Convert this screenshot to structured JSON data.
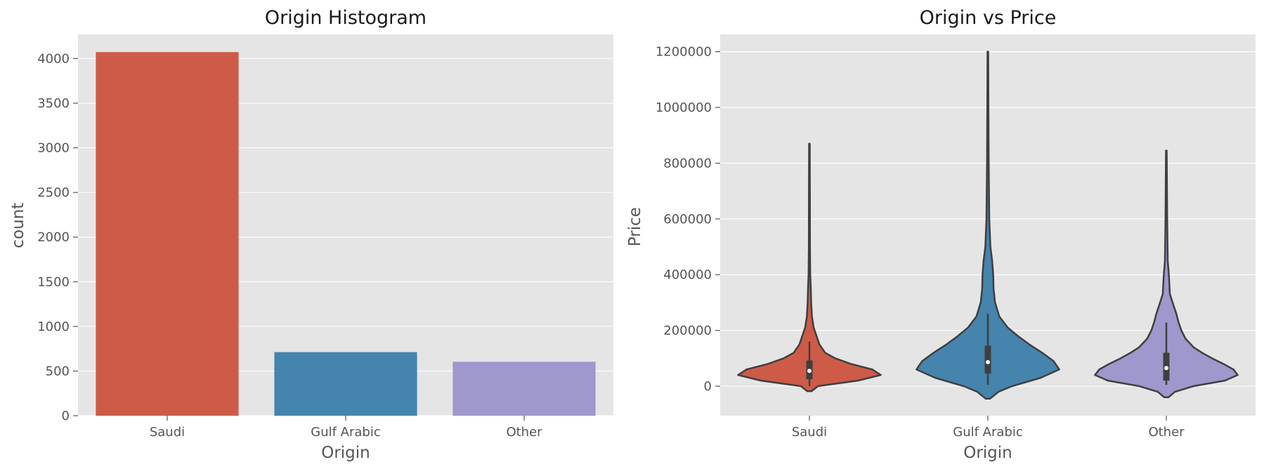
{
  "chart_data": [
    {
      "type": "bar",
      "title": "Origin Histogram",
      "xlabel": "Origin",
      "ylabel": "count",
      "categories": [
        "Saudi",
        "Gulf Arabic",
        "Other"
      ],
      "values": [
        4072,
        712,
        604
      ],
      "colors": [
        "#cd5b48",
        "#4584ad",
        "#9e98cd"
      ],
      "ylim": [
        0,
        4270
      ],
      "yticks": [
        0,
        500,
        1000,
        1500,
        2000,
        2500,
        3000,
        3500,
        4000
      ],
      "grid": true
    },
    {
      "type": "violin",
      "title": "Origin vs Price",
      "xlabel": "Origin",
      "ylabel": "Price",
      "categories": [
        "Saudi",
        "Gulf Arabic",
        "Other"
      ],
      "colors": [
        "#cd5b48",
        "#4584ad",
        "#9e98cd"
      ],
      "ylim": [
        -106000,
        1262000
      ],
      "yticks": [
        0,
        200000,
        400000,
        600000,
        800000,
        1000000,
        1200000
      ],
      "grid": true,
      "series": [
        {
          "name": "Saudi",
          "min": -18000,
          "max": 870000,
          "box": {
            "whisker_low": 0,
            "q1": 25000,
            "median": 55000,
            "q3": 92000,
            "whisker_high": 160000
          },
          "profile": [
            [
              -18000,
              0.03
            ],
            [
              0,
              0.12
            ],
            [
              20000,
              0.68
            ],
            [
              40000,
              1.0
            ],
            [
              60000,
              0.88
            ],
            [
              80000,
              0.58
            ],
            [
              100000,
              0.36
            ],
            [
              120000,
              0.22
            ],
            [
              150000,
              0.14
            ],
            [
              180000,
              0.1
            ],
            [
              210000,
              0.06
            ],
            [
              250000,
              0.035
            ],
            [
              300000,
              0.025
            ],
            [
              350000,
              0.02
            ],
            [
              400000,
              0.012
            ],
            [
              500000,
              0.008
            ],
            [
              650000,
              0.007
            ],
            [
              870000,
              0.005
            ]
          ]
        },
        {
          "name": "Gulf Arabic",
          "min": -45000,
          "max": 1200000,
          "box": {
            "whisker_low": 5000,
            "q1": 45000,
            "median": 86000,
            "q3": 145000,
            "whisker_high": 260000
          },
          "profile": [
            [
              -45000,
              0.03
            ],
            [
              -20000,
              0.15
            ],
            [
              0,
              0.34
            ],
            [
              30000,
              0.74
            ],
            [
              60000,
              1.0
            ],
            [
              90000,
              0.92
            ],
            [
              120000,
              0.76
            ],
            [
              150000,
              0.58
            ],
            [
              180000,
              0.42
            ],
            [
              210000,
              0.28
            ],
            [
              250000,
              0.16
            ],
            [
              300000,
              0.1
            ],
            [
              350000,
              0.08
            ],
            [
              400000,
              0.075
            ],
            [
              450000,
              0.06
            ],
            [
              500000,
              0.035
            ],
            [
              600000,
              0.02
            ],
            [
              800000,
              0.012
            ],
            [
              1000000,
              0.008
            ],
            [
              1200000,
              0.005
            ]
          ]
        },
        {
          "name": "Other",
          "min": -40000,
          "max": 845000,
          "box": {
            "whisker_low": 5000,
            "q1": 20000,
            "median": 65000,
            "q3": 120000,
            "whisker_high": 228000
          },
          "profile": [
            [
              -40000,
              0.03
            ],
            [
              -20000,
              0.12
            ],
            [
              0,
              0.38
            ],
            [
              20000,
              0.82
            ],
            [
              40000,
              1.0
            ],
            [
              60000,
              0.94
            ],
            [
              80000,
              0.8
            ],
            [
              100000,
              0.64
            ],
            [
              120000,
              0.5
            ],
            [
              140000,
              0.38
            ],
            [
              170000,
              0.27
            ],
            [
              200000,
              0.21
            ],
            [
              230000,
              0.17
            ],
            [
              260000,
              0.14
            ],
            [
              290000,
              0.1
            ],
            [
              330000,
              0.05
            ],
            [
              400000,
              0.035
            ],
            [
              450000,
              0.02
            ],
            [
              600000,
              0.012
            ],
            [
              845000,
              0.005
            ]
          ]
        }
      ]
    }
  ]
}
